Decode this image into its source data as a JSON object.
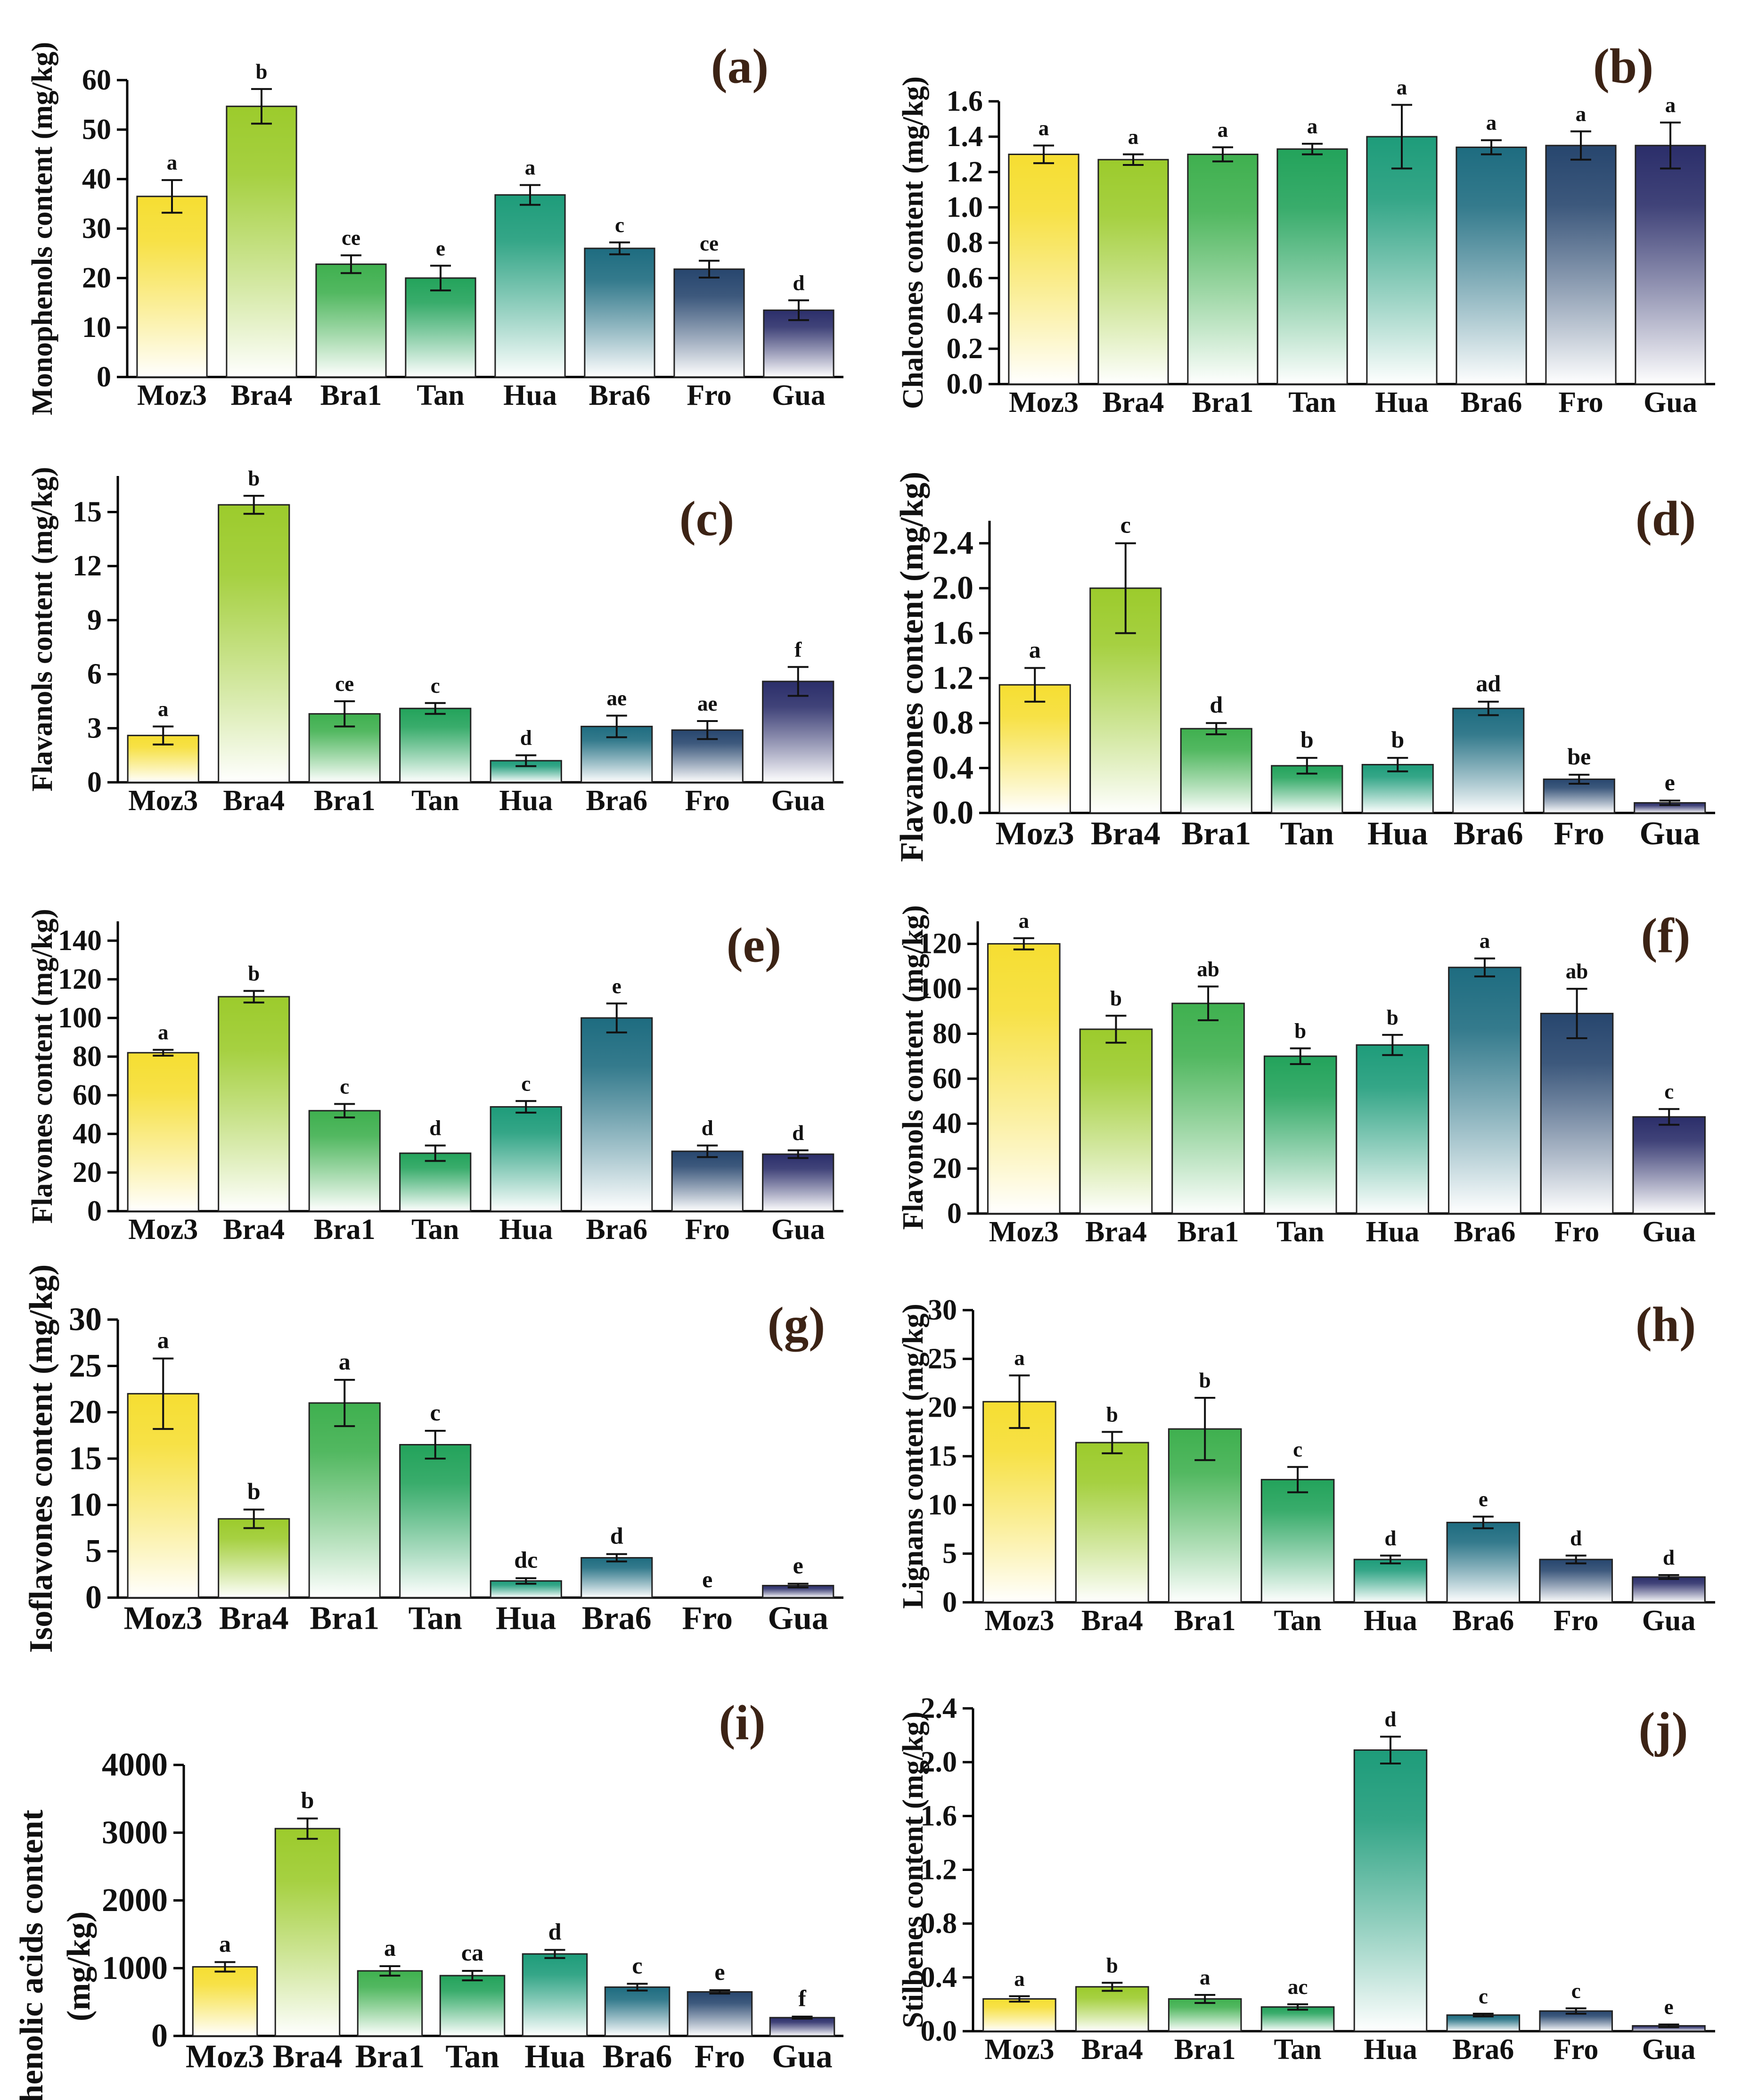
{
  "gradient_stops": {
    "Moz3": "#f6de32",
    "Bra4": "#9ccb2c",
    "Bra1": "#3fb04f",
    "Tan": "#23a35b",
    "Hua": "#1e9c7a",
    "Bra6": "#1e6c80",
    "Fro": "#27466e",
    "Gua": "#2b2e6a"
  },
  "chart_data": [
    {
      "id": "a",
      "panel_label": "(a)",
      "type": "bar",
      "ylabel": "Monophenols content (mg/kg)",
      "categories": [
        "Moz3",
        "Bra4",
        "Bra1",
        "Tan",
        "Hua",
        "Bra6",
        "Fro",
        "Gua"
      ],
      "values": [
        36.5,
        54.7,
        22.8,
        20.0,
        36.8,
        26.0,
        21.8,
        13.5
      ],
      "errors": [
        3.3,
        3.5,
        1.8,
        2.5,
        2.0,
        1.2,
        1.7,
        2.0
      ],
      "letters": [
        "a",
        "b",
        "ce",
        "e",
        "a",
        "c",
        "ce",
        "d"
      ],
      "ylim": [
        0,
        60
      ],
      "yticks": [
        "0",
        "10",
        "20",
        "30",
        "40",
        "50",
        "60"
      ]
    },
    {
      "id": "b",
      "panel_label": "(b)",
      "type": "bar",
      "ylabel": "Chalcones content (mg/kg)",
      "categories": [
        "Moz3",
        "Bra4",
        "Bra1",
        "Tan",
        "Hua",
        "Bra6",
        "Fro",
        "Gua"
      ],
      "values": [
        1.3,
        1.27,
        1.3,
        1.33,
        1.4,
        1.34,
        1.35,
        1.35
      ],
      "errors": [
        0.05,
        0.03,
        0.04,
        0.03,
        0.18,
        0.04,
        0.08,
        0.13
      ],
      "letters": [
        "a",
        "a",
        "a",
        "a",
        "a",
        "a",
        "a",
        "a"
      ],
      "ylim": [
        0,
        1.6
      ],
      "yticks": [
        "0.0",
        "0.2",
        "0.4",
        "0.6",
        "0.8",
        "1.0",
        "1.2",
        "1.4",
        "1.6"
      ]
    },
    {
      "id": "c",
      "panel_label": "(c)",
      "type": "bar",
      "ylabel": "Flavanols content (mg/kg)",
      "categories": [
        "Moz3",
        "Bra4",
        "Bra1",
        "Tan",
        "Hua",
        "Bra6",
        "Fro",
        "Gua"
      ],
      "values": [
        2.6,
        15.4,
        3.8,
        4.1,
        1.2,
        3.1,
        2.9,
        5.6
      ],
      "errors": [
        0.5,
        0.5,
        0.7,
        0.3,
        0.3,
        0.6,
        0.5,
        0.8
      ],
      "letters": [
        "a",
        "b",
        "ce",
        "c",
        "d",
        "ae",
        "ae",
        "f"
      ],
      "ylim": [
        0,
        17
      ],
      "yticks": [
        "0",
        "3",
        "6",
        "9",
        "12",
        "15"
      ]
    },
    {
      "id": "d",
      "panel_label": "(d)",
      "type": "bar",
      "ylabel": "Flavanones content (mg/kg)",
      "categories": [
        "Moz3",
        "Bra4",
        "Bra1",
        "Tan",
        "Hua",
        "Bra6",
        "Fro",
        "Gua"
      ],
      "values": [
        1.14,
        2.0,
        0.75,
        0.42,
        0.43,
        0.93,
        0.3,
        0.09
      ],
      "errors": [
        0.15,
        0.4,
        0.05,
        0.07,
        0.06,
        0.06,
        0.04,
        0.02
      ],
      "letters": [
        "a",
        "c",
        "d",
        "b",
        "b",
        "ad",
        "be",
        "e"
      ],
      "ylim": [
        0,
        2.6
      ],
      "yticks": [
        "0.0",
        "0.4",
        "0.8",
        "1.2",
        "1.6",
        "2.0",
        "2.4"
      ]
    },
    {
      "id": "e",
      "panel_label": "(e)",
      "type": "bar",
      "ylabel": "Flavones content (mg/kg)",
      "categories": [
        "Moz3",
        "Bra4",
        "Bra1",
        "Tan",
        "Hua",
        "Bra6",
        "Fro",
        "Gua"
      ],
      "values": [
        82.0,
        111.0,
        52.0,
        30.0,
        54.0,
        100.0,
        31.0,
        29.5
      ],
      "errors": [
        1.5,
        3.0,
        3.5,
        4.0,
        3.0,
        7.5,
        3.0,
        2.0
      ],
      "letters": [
        "a",
        "b",
        "c",
        "d",
        "c",
        "e",
        "d",
        "d"
      ],
      "ylim": [
        0,
        150
      ],
      "yticks": [
        "0",
        "20",
        "40",
        "60",
        "80",
        "100",
        "120",
        "140"
      ]
    },
    {
      "id": "f",
      "panel_label": "(f)",
      "type": "bar",
      "ylabel": "Flavonols content (mg/kg)",
      "categories": [
        "Moz3",
        "Bra4",
        "Bra1",
        "Tan",
        "Hua",
        "Bra6",
        "Fro",
        "Gua"
      ],
      "values": [
        120.0,
        82.0,
        93.5,
        70.0,
        75.0,
        109.5,
        89.0,
        43.0
      ],
      "errors": [
        2.5,
        6.0,
        7.5,
        3.5,
        4.5,
        4.0,
        11.0,
        3.5
      ],
      "letters": [
        "a",
        "b",
        "ab",
        "b",
        "b",
        "a",
        "ab",
        "c"
      ],
      "ylim": [
        0,
        130
      ],
      "yticks": [
        "0",
        "20",
        "40",
        "60",
        "80",
        "100",
        "120"
      ]
    },
    {
      "id": "g",
      "panel_label": "(g)",
      "type": "bar",
      "ylabel": "Isoflavones content (mg/kg)",
      "categories": [
        "Moz3",
        "Bra4",
        "Bra1",
        "Tan",
        "Hua",
        "Bra6",
        "Fro",
        "Gua"
      ],
      "values": [
        22.0,
        8.5,
        21.0,
        16.5,
        1.8,
        4.3,
        0,
        1.3
      ],
      "errors": [
        3.8,
        1.0,
        2.5,
        1.5,
        0.3,
        0.4,
        0,
        0.2
      ],
      "letters": [
        "a",
        "b",
        "a",
        "c",
        "dc",
        "d",
        "e",
        "e"
      ],
      "ylim": [
        0,
        30
      ],
      "yticks": [
        "0",
        "5",
        "10",
        "15",
        "20",
        "25",
        "30"
      ]
    },
    {
      "id": "h",
      "panel_label": "(h)",
      "type": "bar",
      "ylabel": "Lignans content (mg/kg)",
      "categories": [
        "Moz3",
        "Bra4",
        "Bra1",
        "Tan",
        "Hua",
        "Bra6",
        "Fro",
        "Gua"
      ],
      "values": [
        20.6,
        16.4,
        17.8,
        12.6,
        4.4,
        8.2,
        4.4,
        2.6
      ],
      "errors": [
        2.7,
        1.1,
        3.2,
        1.3,
        0.4,
        0.6,
        0.4,
        0.2
      ],
      "letters": [
        "a",
        "b",
        "b",
        "c",
        "d",
        "e",
        "d",
        "d"
      ],
      "ylim": [
        0,
        30
      ],
      "yticks": [
        "0",
        "5",
        "10",
        "15",
        "20",
        "25",
        "30"
      ]
    },
    {
      "id": "i",
      "panel_label": "(i)",
      "type": "bar",
      "ylabel": "Phenolic acids content (mg/kg)",
      "ylabel_lines": [
        "Phenolic acids content",
        "(mg/kg)"
      ],
      "categories": [
        "Moz3",
        "Bra4",
        "Bra1",
        "Tan",
        "Hua",
        "Bra6",
        "Fro",
        "Gua"
      ],
      "values": [
        1020,
        3060,
        960,
        890,
        1210,
        720,
        650,
        270
      ],
      "errors": [
        70,
        150,
        70,
        70,
        60,
        50,
        25,
        15
      ],
      "letters": [
        "a",
        "b",
        "a",
        "ca",
        "d",
        "c",
        "e",
        "f"
      ],
      "ylim": [
        0,
        4000
      ],
      "yticks": [
        "0",
        "1000",
        "2000",
        "3000",
        "4000"
      ]
    },
    {
      "id": "j",
      "panel_label": "(j)",
      "type": "bar",
      "ylabel": "Stilbenes content (mg/kg)",
      "categories": [
        "Moz3",
        "Bra4",
        "Bra1",
        "Tan",
        "Hua",
        "Bra6",
        "Fro",
        "Gua"
      ],
      "values": [
        0.24,
        0.33,
        0.24,
        0.18,
        2.09,
        0.12,
        0.15,
        0.04
      ],
      "errors": [
        0.02,
        0.03,
        0.03,
        0.02,
        0.1,
        0.01,
        0.02,
        0.01
      ],
      "letters": [
        "a",
        "b",
        "a",
        "ac",
        "d",
        "c",
        "c",
        "e"
      ],
      "ylim": [
        0,
        2.4
      ],
      "yticks": [
        "0.0",
        "0.4",
        "0.8",
        "1.2",
        "1.6",
        "2.0",
        "2.4"
      ]
    }
  ]
}
